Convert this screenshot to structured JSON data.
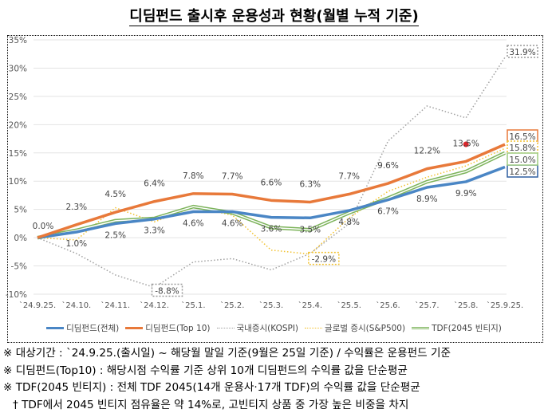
{
  "chart_data": {
    "type": "line",
    "title": "디딤펀드 출시후 운용성과 현황(월별 누적 기준)",
    "categories": [
      "`24.9.25.",
      "`24.10.",
      "`24.11.",
      "`24.12.",
      "`25.1.",
      "`25.2.",
      "`25.3.",
      "`25.4.",
      "`25.5.",
      "`25.6.",
      "`25.7.",
      "`25.8.",
      "`25.9.25."
    ],
    "yticks": [
      "35%",
      "30%",
      "25%",
      "20%",
      "15%",
      "10%",
      "5%",
      "0%",
      "-5%",
      "-10%"
    ],
    "ylim": [
      -10,
      35
    ],
    "unit": "%",
    "grid": true,
    "legend_position": "bottom",
    "series": [
      {
        "name": "디딤펀드(전체)",
        "color": "#4a86c5",
        "style": "solid-thick",
        "values": [
          0,
          1.0,
          2.5,
          3.3,
          4.6,
          4.6,
          3.6,
          3.5,
          4.8,
          6.7,
          8.9,
          9.9,
          12.5
        ],
        "labels": [
          null,
          "1.0%",
          "2.5%",
          "3.3%",
          "4.6%",
          "4.6%",
          "3.6%",
          "3.5%",
          "4.8%",
          "6.7%",
          "8.9%",
          "9.9%",
          "12.5%"
        ]
      },
      {
        "name": "디딤펀드(Top 10)",
        "color": "#e8793a",
        "style": "solid-thick",
        "values": [
          0,
          2.3,
          4.5,
          6.4,
          7.8,
          7.7,
          6.6,
          6.3,
          7.7,
          9.6,
          12.2,
          13.5,
          16.5
        ],
        "labels": [
          "0.0%",
          "2.3%",
          "4.5%",
          "6.4%",
          "7.8%",
          "7.7%",
          "6.6%",
          "6.3%",
          "7.7%",
          "9.6%",
          "12.2%",
          "13.5%",
          "16.5%"
        ]
      },
      {
        "name": "국내증시(KOSPI)",
        "color": "#a0a0a0",
        "style": "dotted",
        "values": [
          0,
          -2.8,
          -6.6,
          -8.8,
          -4.3,
          -3.7,
          -5.7,
          -2.8,
          2.5,
          17.1,
          23.3,
          21.2,
          31.9
        ],
        "labels": [
          null,
          null,
          null,
          "-8.8%",
          null,
          null,
          null,
          null,
          null,
          null,
          null,
          null,
          "31.9%"
        ]
      },
      {
        "name": "글로벌 증시(S&P500)",
        "color": "#f2c12e",
        "style": "dotted",
        "values": [
          0,
          -0.4,
          5.3,
          2.8,
          5.4,
          4.0,
          -2.2,
          -2.9,
          3.5,
          8.2,
          10.7,
          12.7,
          15.8
        ],
        "labels": [
          null,
          null,
          null,
          null,
          null,
          null,
          null,
          "-2.9%",
          null,
          null,
          null,
          null,
          "15.8%"
        ]
      },
      {
        "name": "TDF(2045 빈티지)",
        "color": "#7cb35a",
        "style": "double",
        "values": [
          0,
          1.3,
          3.0,
          3.4,
          5.5,
          4.4,
          1.8,
          1.4,
          4.4,
          7.0,
          9.9,
          11.7,
          15.0
        ],
        "labels": [
          null,
          null,
          null,
          null,
          null,
          null,
          null,
          null,
          null,
          null,
          null,
          null,
          "15.0%"
        ]
      }
    ],
    "annotations": [
      {
        "type": "marker",
        "color": "#d9262b",
        "category": "`25.8."
      }
    ]
  },
  "notes": [
    "※ 대상기간 : `24.9.25.(출시일) ~ 해당월 말일 기준(9월은 25일 기준) / 수익률은 운용펀드 기준",
    "※ 디딤펀드(Top10) : 해당시점 수익률 기준 상위 10개 디딤펀드의 수익률 값을 단순평균",
    "※ TDF(2045 빈티지) : 전체 TDF 2045(14개 운용사·17개 TDF)의 수익률 값을 단순평균",
    "† TDF에서 2045 빈티지 점유율은 약 14%로, 고빈티지 상품 중 가장 높은 비중을 차지"
  ]
}
